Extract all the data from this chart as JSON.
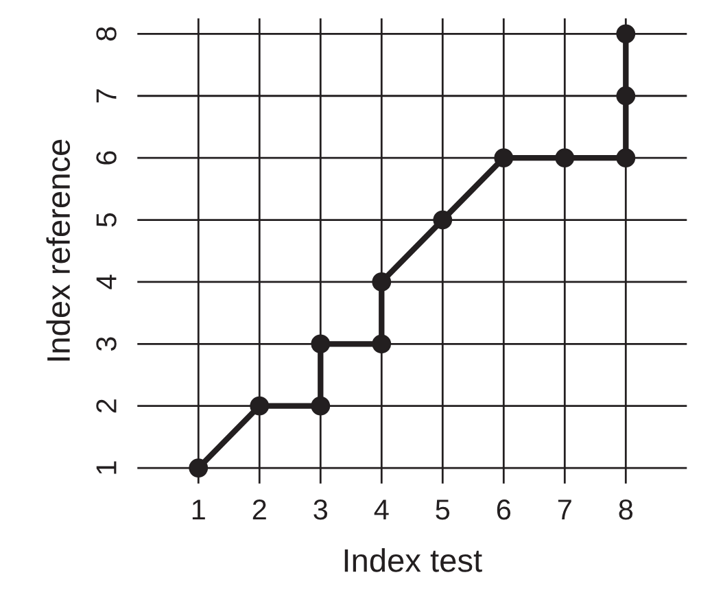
{
  "chart_data": {
    "type": "line",
    "xlabel": "Index test",
    "ylabel": "Index reference",
    "x": [
      1,
      2,
      3,
      3,
      4,
      4,
      5,
      6,
      7,
      8,
      8,
      8
    ],
    "series": [
      {
        "color": "#231f20",
        "values": [
          1,
          2,
          2,
          3,
          3,
          4,
          5,
          6,
          6,
          6,
          7,
          8
        ]
      }
    ],
    "xlim": [
      0,
      9
    ],
    "ylim": [
      0.75,
      8.25
    ],
    "xticks": [
      1,
      2,
      3,
      4,
      5,
      6,
      7,
      8
    ],
    "yticks": [
      1,
      2,
      3,
      4,
      5,
      6,
      7,
      8
    ],
    "grid": true,
    "marker": "circle",
    "line_style": "solid"
  }
}
